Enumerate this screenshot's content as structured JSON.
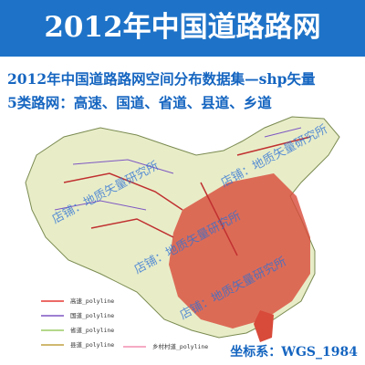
{
  "header": {
    "title": "2012年中国道路路网"
  },
  "subtitle": "2012年中国道路路网空间分布数据集—shp矢量",
  "road_types": "5类路网：高速、国道、省道、县道、乡道",
  "legend": {
    "items": [
      {
        "label": "高速_polyline",
        "color": "#e53935"
      },
      {
        "label": "国道_polyline",
        "color": "#7e57c2"
      },
      {
        "label": "省道_polyline",
        "color": "#9ccc65"
      },
      {
        "label": "县道_polyline",
        "color": "#c0a040"
      },
      {
        "label": "乡村村道_polyline",
        "color": "#f48fb1"
      }
    ]
  },
  "watermarks": [
    "店铺：地质矢量研究所",
    "店铺：地质矢量研究所",
    "店铺：地质矢量研究所",
    "店铺：地质矢量研究所"
  ],
  "coordinate_system": "坐标系：WGS_1984"
}
